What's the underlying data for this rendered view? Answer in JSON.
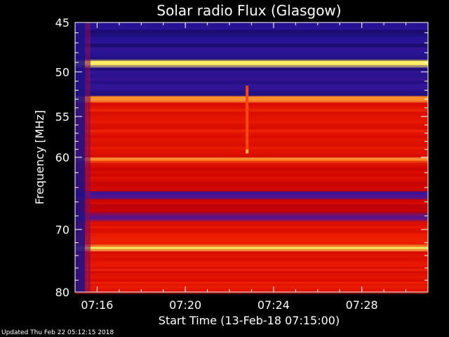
{
  "chart_data": {
    "type": "heatmap",
    "title": "Solar radio Flux (Glasgow)",
    "xlabel": "Start Time (13-Feb-18 07:15:00)",
    "ylabel": "Frequency [MHz]",
    "x_unit": "minutes",
    "xlim": [
      15.0,
      31.0
    ],
    "ylim": [
      45,
      80
    ],
    "y_reversed": true,
    "y_scale": "log",
    "x_ticks": [
      {
        "value": 16,
        "label": "07:16"
      },
      {
        "value": 20,
        "label": "07:20"
      },
      {
        "value": 24,
        "label": "07:24"
      },
      {
        "value": 28,
        "label": "07:28"
      }
    ],
    "y_ticks": [
      {
        "value": 45,
        "label": "45"
      },
      {
        "value": 50,
        "label": "50"
      },
      {
        "value": 55,
        "label": "55"
      },
      {
        "value": 60,
        "label": "60"
      },
      {
        "value": 70,
        "label": "70"
      },
      {
        "value": 80,
        "label": "80"
      }
    ],
    "bands": [
      {
        "f_low": 45.0,
        "f_high": 48.7,
        "level": 0.12
      },
      {
        "f_low": 48.7,
        "f_high": 49.3,
        "level": 0.95
      },
      {
        "f_low": 49.3,
        "f_high": 52.6,
        "level": 0.15
      },
      {
        "f_low": 52.6,
        "f_high": 53.2,
        "level": 0.8
      },
      {
        "f_low": 53.2,
        "f_high": 60.0,
        "level": 0.55
      },
      {
        "f_low": 60.0,
        "f_high": 60.5,
        "level": 0.8
      },
      {
        "f_low": 60.5,
        "f_high": 64.5,
        "level": 0.5
      },
      {
        "f_low": 64.5,
        "f_high": 65.5,
        "level": 0.25
      },
      {
        "f_low": 65.5,
        "f_high": 67.5,
        "level": 0.45
      },
      {
        "f_low": 67.5,
        "f_high": 68.5,
        "level": 0.3
      },
      {
        "f_low": 68.5,
        "f_high": 72.3,
        "level": 0.55
      },
      {
        "f_low": 72.3,
        "f_high": 73.0,
        "level": 0.95
      },
      {
        "f_low": 73.0,
        "f_high": 80.0,
        "level": 0.55
      }
    ],
    "events": [
      {
        "x": 22.8,
        "f_low": 51.5,
        "f_high": 59.5,
        "level": 0.7
      },
      {
        "x": 22.8,
        "f_low": 59.0,
        "f_high": 59.5,
        "level": 0.9
      }
    ],
    "colors": {
      "low": "#000033",
      "mid_low": "#2b1a9a",
      "mid": "#d40000",
      "high": "#ff5a1a",
      "peak": "#ffff66"
    }
  },
  "footer": {
    "updated": "Updated Thu Feb 22 05:12:15 2018"
  }
}
